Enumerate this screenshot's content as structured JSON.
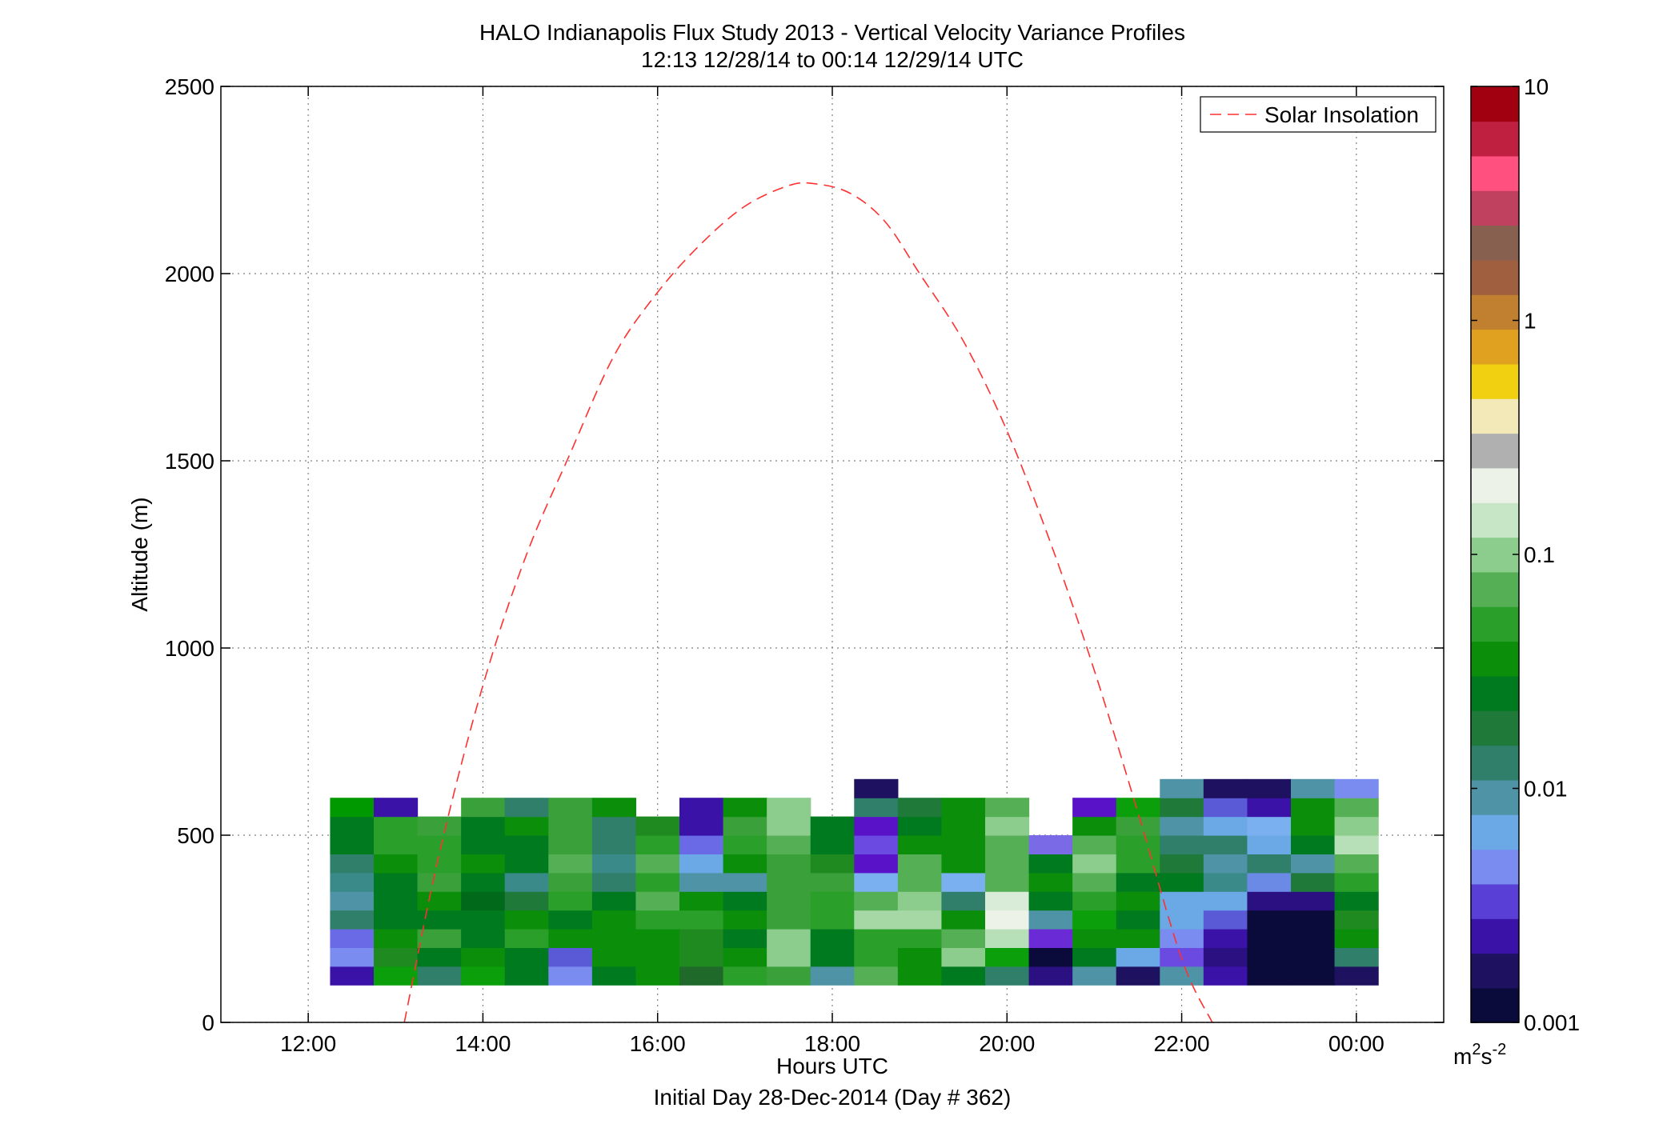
{
  "chart_data": {
    "type": "heatmap",
    "title": "HALO Indianapolis Flux Study 2013 - Vertical Velocity Variance Profiles",
    "subtitle": "12:13 12/28/14 to 00:14 12/29/14  UTC",
    "xlabel": "Hours UTC",
    "xlabel2": "Initial Day 28-Dec-2014 (Day # 362)",
    "ylabel": "Altitude (m)",
    "xlim": [
      11.0,
      25.0
    ],
    "ylim": [
      0,
      2500
    ],
    "xticks": [
      12,
      14,
      16,
      18,
      20,
      22,
      24
    ],
    "xtick_labels": [
      "12:00",
      "14:00",
      "16:00",
      "18:00",
      "20:00",
      "22:00",
      "00:00"
    ],
    "yticks": [
      0,
      500,
      1000,
      1500,
      2000,
      2500
    ],
    "ytick_labels": [
      "0",
      "500",
      "1000",
      "1500",
      "2000",
      "2500"
    ],
    "grid": true,
    "colorbar": {
      "scale": "log",
      "range": [
        0.001,
        10
      ],
      "ticks": [
        0.001,
        0.01,
        0.1,
        1,
        10
      ],
      "tick_labels": [
        "0.001",
        "0.01",
        "0.1",
        "1",
        "10"
      ],
      "unit_base": "m",
      "unit_sup1": "2",
      "unit_mid": "s",
      "unit_sup2": "-2",
      "colors": [
        "#0b0b3b",
        "#1e1160",
        "#3a12a8",
        "#5a3fd6",
        "#7b8cf0",
        "#6aa8e6",
        "#4e93a6",
        "#2f7f6a",
        "#1f7a3a",
        "#007a1f",
        "#0b8f0b",
        "#2aa02a",
        "#55b055",
        "#8ccc8c",
        "#c6e6c6",
        "#ecf2e8",
        "#b0b0b0",
        "#f2e8b8",
        "#f0d010",
        "#e0a020",
        "#c08030",
        "#a06040",
        "#886050",
        "#c04060",
        "#ff5080",
        "#c02040",
        "#a00010"
      ]
    },
    "legend": {
      "label": "Solar Insolation",
      "position": "top-right",
      "color": "#ff3030",
      "style": "dashed"
    },
    "solar_insolation": {
      "x": [
        13.1,
        13.5,
        14.0,
        14.5,
        15.0,
        15.5,
        16.0,
        16.5,
        17.0,
        17.5,
        17.8,
        18.2,
        18.6,
        19.0,
        19.5,
        20.0,
        20.5,
        21.0,
        21.5,
        22.0,
        22.35
      ],
      "y": [
        0,
        450,
        900,
        1250,
        1520,
        1780,
        1950,
        2080,
        2180,
        2235,
        2240,
        2215,
        2140,
        2000,
        1820,
        1580,
        1280,
        940,
        560,
        170,
        0
      ]
    },
    "bin_height_m": 50,
    "columns": [
      {
        "x": 12.5,
        "bins": [
          [
            100,
            "#3a12a8"
          ],
          [
            150,
            "#7b8cf0"
          ],
          [
            200,
            "#6a6ae6"
          ],
          [
            250,
            "#2f7f6a"
          ],
          [
            300,
            "#4e93a6"
          ],
          [
            350,
            "#3a8a8a"
          ],
          [
            400,
            "#2f7f6a"
          ],
          [
            450,
            "#007a1f"
          ],
          [
            500,
            "#007a1f"
          ],
          [
            550,
            "#009900"
          ]
        ]
      },
      {
        "x": 13.0,
        "bins": [
          [
            100,
            "#0b9f0b"
          ],
          [
            150,
            "#1f8a1f"
          ],
          [
            200,
            "#0b8f0b"
          ],
          [
            250,
            "#007a1f"
          ],
          [
            300,
            "#007a1f"
          ],
          [
            350,
            "#007a1f"
          ],
          [
            400,
            "#0b8f0b"
          ],
          [
            450,
            "#2aa02a"
          ],
          [
            500,
            "#2aa02a"
          ],
          [
            550,
            "#3a12a8"
          ]
        ]
      },
      {
        "x": 13.5,
        "bins": [
          [
            100,
            "#2f7f6a"
          ],
          [
            150,
            "#007a1f"
          ],
          [
            200,
            "#3aa03a"
          ],
          [
            250,
            "#007a1f"
          ],
          [
            300,
            "#0b8f0b"
          ],
          [
            350,
            "#3aa03a"
          ],
          [
            400,
            "#2aa02a"
          ],
          [
            450,
            "#2aa02a"
          ],
          [
            500,
            "#3aa03a"
          ]
        ]
      },
      {
        "x": 14.0,
        "bins": [
          [
            100,
            "#0b9f0b"
          ],
          [
            150,
            "#0b8f0b"
          ],
          [
            200,
            "#007a1f"
          ],
          [
            250,
            "#007a1f"
          ],
          [
            300,
            "#006a1a"
          ],
          [
            350,
            "#007a1f"
          ],
          [
            400,
            "#0b8f0b"
          ],
          [
            450,
            "#007a1f"
          ],
          [
            500,
            "#007a1f"
          ],
          [
            550,
            "#3aa03a"
          ]
        ]
      },
      {
        "x": 14.5,
        "bins": [
          [
            100,
            "#007a1f"
          ],
          [
            150,
            "#007a1f"
          ],
          [
            200,
            "#2aa02a"
          ],
          [
            250,
            "#0b8f0b"
          ],
          [
            300,
            "#1f7a3a"
          ],
          [
            350,
            "#3a8a8a"
          ],
          [
            400,
            "#007a1f"
          ],
          [
            450,
            "#007a1f"
          ],
          [
            500,
            "#0b8f0b"
          ],
          [
            550,
            "#2f7f6a"
          ]
        ]
      },
      {
        "x": 15.0,
        "bins": [
          [
            100,
            "#7b8cf0"
          ],
          [
            150,
            "#5a5ad6"
          ],
          [
            200,
            "#0b8f0b"
          ],
          [
            250,
            "#007a1f"
          ],
          [
            300,
            "#2aa02a"
          ],
          [
            350,
            "#3aa03a"
          ],
          [
            400,
            "#55b055"
          ],
          [
            450,
            "#3aa03a"
          ],
          [
            500,
            "#3aa03a"
          ],
          [
            550,
            "#3aa03a"
          ]
        ]
      },
      {
        "x": 15.5,
        "bins": [
          [
            100,
            "#007a1f"
          ],
          [
            150,
            "#0b8f0b"
          ],
          [
            200,
            "#0b8f0b"
          ],
          [
            250,
            "#0b8f0b"
          ],
          [
            300,
            "#007a1f"
          ],
          [
            350,
            "#2f7f6a"
          ],
          [
            400,
            "#3a8a8a"
          ],
          [
            450,
            "#2f7f6a"
          ],
          [
            500,
            "#2f7f6a"
          ],
          [
            550,
            "#0b8f0b"
          ]
        ]
      },
      {
        "x": 16.0,
        "bins": [
          [
            100,
            "#0b8f0b"
          ],
          [
            150,
            "#0b8f0b"
          ],
          [
            200,
            "#0b8f0b"
          ],
          [
            250,
            "#2aa02a"
          ],
          [
            300,
            "#55b055"
          ],
          [
            350,
            "#2aa02a"
          ],
          [
            400,
            "#55b055"
          ],
          [
            450,
            "#2aa02a"
          ],
          [
            500,
            "#1f8a1f"
          ]
        ]
      },
      {
        "x": 16.5,
        "bins": [
          [
            100,
            "#1f6a2a"
          ],
          [
            150,
            "#1f8a1f"
          ],
          [
            200,
            "#1f8a1f"
          ],
          [
            250,
            "#2aa02a"
          ],
          [
            300,
            "#0b8f0b"
          ],
          [
            350,
            "#4e93a6"
          ],
          [
            400,
            "#6aa8e6"
          ],
          [
            450,
            "#6a6ae6"
          ],
          [
            500,
            "#3a12a8"
          ],
          [
            550,
            "#3a12a8"
          ]
        ]
      },
      {
        "x": 17.0,
        "bins": [
          [
            100,
            "#2aa02a"
          ],
          [
            150,
            "#0b8f0b"
          ],
          [
            200,
            "#007a1f"
          ],
          [
            250,
            "#0b8f0b"
          ],
          [
            300,
            "#007a1f"
          ],
          [
            350,
            "#4e93a6"
          ],
          [
            400,
            "#0b8f0b"
          ],
          [
            450,
            "#2aa02a"
          ],
          [
            500,
            "#3aa03a"
          ],
          [
            550,
            "#0b8f0b"
          ]
        ]
      },
      {
        "x": 17.5,
        "bins": [
          [
            100,
            "#3aa03a"
          ],
          [
            150,
            "#8ccc8c"
          ],
          [
            200,
            "#8ccc8c"
          ],
          [
            250,
            "#3aa03a"
          ],
          [
            300,
            "#3aa03a"
          ],
          [
            350,
            "#3aa03a"
          ],
          [
            400,
            "#3aa03a"
          ],
          [
            450,
            "#55b055"
          ],
          [
            500,
            "#8ccc8c"
          ],
          [
            550,
            "#8ccc8c"
          ]
        ]
      },
      {
        "x": 18.0,
        "bins": [
          [
            100,
            "#4e93a6"
          ],
          [
            150,
            "#007a1f"
          ],
          [
            200,
            "#007a1f"
          ],
          [
            250,
            "#2aa02a"
          ],
          [
            300,
            "#2aa02a"
          ],
          [
            350,
            "#3aa03a"
          ],
          [
            400,
            "#1f8a1f"
          ],
          [
            450,
            "#007a1f"
          ],
          [
            500,
            "#007a1f"
          ]
        ]
      },
      {
        "x": 18.5,
        "bins": [
          [
            100,
            "#55b055"
          ],
          [
            150,
            "#2aa02a"
          ],
          [
            200,
            "#2aa02a"
          ],
          [
            250,
            "#a6d8a6"
          ],
          [
            300,
            "#55b055"
          ],
          [
            350,
            "#7bb0f0"
          ],
          [
            400,
            "#5a12c8"
          ],
          [
            450,
            "#6a4ae0"
          ],
          [
            500,
            "#5a12c8"
          ],
          [
            550,
            "#2f7f6a"
          ],
          [
            600,
            "#1e1160"
          ]
        ]
      },
      {
        "x": 19.0,
        "bins": [
          [
            100,
            "#0b8f0b"
          ],
          [
            150,
            "#0b8f0b"
          ],
          [
            200,
            "#2aa02a"
          ],
          [
            250,
            "#a6d8a6"
          ],
          [
            300,
            "#8ccc8c"
          ],
          [
            350,
            "#55b055"
          ],
          [
            400,
            "#55b055"
          ],
          [
            450,
            "#0b8f0b"
          ],
          [
            500,
            "#007a1f"
          ],
          [
            550,
            "#1f7a3a"
          ]
        ]
      },
      {
        "x": 19.5,
        "bins": [
          [
            100,
            "#007a1f"
          ],
          [
            150,
            "#8ccc8c"
          ],
          [
            200,
            "#55b055"
          ],
          [
            250,
            "#0b8f0b"
          ],
          [
            300,
            "#2f7f6a"
          ],
          [
            350,
            "#7bb0f0"
          ],
          [
            400,
            "#0b8f0b"
          ],
          [
            450,
            "#0b8f0b"
          ],
          [
            500,
            "#0b8f0b"
          ],
          [
            550,
            "#0b8f0b"
          ]
        ]
      },
      {
        "x": 20.0,
        "bins": [
          [
            100,
            "#2f7f6a"
          ],
          [
            150,
            "#0b9f0b"
          ],
          [
            200,
            "#b8e0b8"
          ],
          [
            250,
            "#ecf2e8"
          ],
          [
            300,
            "#d8ecd8"
          ],
          [
            350,
            "#55b055"
          ],
          [
            400,
            "#55b055"
          ],
          [
            450,
            "#55b055"
          ],
          [
            500,
            "#8ccc8c"
          ],
          [
            550,
            "#55b055"
          ]
        ]
      },
      {
        "x": 20.5,
        "bins": [
          [
            100,
            "#2a1080"
          ],
          [
            150,
            "#0b0b3b"
          ],
          [
            200,
            "#6a2ad6"
          ],
          [
            250,
            "#4e93a6"
          ],
          [
            300,
            "#007a1f"
          ],
          [
            350,
            "#0b8f0b"
          ],
          [
            400,
            "#007a1f"
          ],
          [
            450,
            "#7b6ae6"
          ]
        ]
      },
      {
        "x": 21.0,
        "bins": [
          [
            100,
            "#4e93a6"
          ],
          [
            150,
            "#007a1f"
          ],
          [
            200,
            "#0b8f0b"
          ],
          [
            250,
            "#0b9f0b"
          ],
          [
            300,
            "#2aa02a"
          ],
          [
            350,
            "#55b055"
          ],
          [
            400,
            "#8ccc8c"
          ],
          [
            450,
            "#55b055"
          ],
          [
            500,
            "#0b8f0b"
          ],
          [
            550,
            "#5a12c8"
          ]
        ]
      },
      {
        "x": 21.5,
        "bins": [
          [
            100,
            "#1e1160"
          ],
          [
            150,
            "#6aa8e6"
          ],
          [
            200,
            "#0b8f0b"
          ],
          [
            250,
            "#007a1f"
          ],
          [
            300,
            "#0b8f0b"
          ],
          [
            350,
            "#007a1f"
          ],
          [
            400,
            "#2aa02a"
          ],
          [
            450,
            "#2aa02a"
          ],
          [
            500,
            "#3aa03a"
          ],
          [
            550,
            "#0b9f0b"
          ]
        ]
      },
      {
        "x": 22.0,
        "bins": [
          [
            100,
            "#4e93a6"
          ],
          [
            150,
            "#6a4ae0"
          ],
          [
            200,
            "#7b8cf0"
          ],
          [
            250,
            "#6aa8e6"
          ],
          [
            300,
            "#6aa8e6"
          ],
          [
            350,
            "#007a1f"
          ],
          [
            400,
            "#1f7a3a"
          ],
          [
            450,
            "#2f7f6a"
          ],
          [
            500,
            "#4e93a6"
          ],
          [
            550,
            "#1f7a3a"
          ],
          [
            600,
            "#4e93a6"
          ]
        ]
      },
      {
        "x": 22.5,
        "bins": [
          [
            100,
            "#3a12a8"
          ],
          [
            150,
            "#2a1080"
          ],
          [
            200,
            "#3a12a8"
          ],
          [
            250,
            "#5a5ad6"
          ],
          [
            300,
            "#6aa8e6"
          ],
          [
            350,
            "#3a8a8a"
          ],
          [
            400,
            "#4e93a6"
          ],
          [
            450,
            "#2f7f6a"
          ],
          [
            500,
            "#6aa8e6"
          ],
          [
            550,
            "#5a5ad6"
          ],
          [
            600,
            "#1e1160"
          ]
        ]
      },
      {
        "x": 23.0,
        "bins": [
          [
            100,
            "#0b0b3b"
          ],
          [
            150,
            "#0b0b3b"
          ],
          [
            200,
            "#0b0b3b"
          ],
          [
            250,
            "#0b0b3b"
          ],
          [
            300,
            "#2a1080"
          ],
          [
            350,
            "#6a8ae6"
          ],
          [
            400,
            "#2f7f6a"
          ],
          [
            450,
            "#6aa8e6"
          ],
          [
            500,
            "#7bb0f0"
          ],
          [
            550,
            "#3a12a8"
          ],
          [
            600,
            "#1e1160"
          ]
        ]
      },
      {
        "x": 23.5,
        "bins": [
          [
            100,
            "#0b0b3b"
          ],
          [
            150,
            "#0b0b3b"
          ],
          [
            200,
            "#0b0b3b"
          ],
          [
            250,
            "#0b0b3b"
          ],
          [
            300,
            "#2a1080"
          ],
          [
            350,
            "#1f7a3a"
          ],
          [
            400,
            "#4e93a6"
          ],
          [
            450,
            "#007a1f"
          ],
          [
            500,
            "#0b8f0b"
          ],
          [
            550,
            "#0b8f0b"
          ],
          [
            600,
            "#4e93a6"
          ]
        ]
      },
      {
        "x": 24.0,
        "bins": [
          [
            100,
            "#1e1160"
          ],
          [
            150,
            "#2f7f6a"
          ],
          [
            200,
            "#0b8f0b"
          ],
          [
            250,
            "#1f8a1f"
          ],
          [
            300,
            "#007a1f"
          ],
          [
            350,
            "#2aa02a"
          ],
          [
            400,
            "#55b055"
          ],
          [
            450,
            "#b8e0b8"
          ],
          [
            500,
            "#8ccc8c"
          ],
          [
            550,
            "#55b055"
          ],
          [
            600,
            "#7b8cf0"
          ]
        ]
      }
    ]
  }
}
